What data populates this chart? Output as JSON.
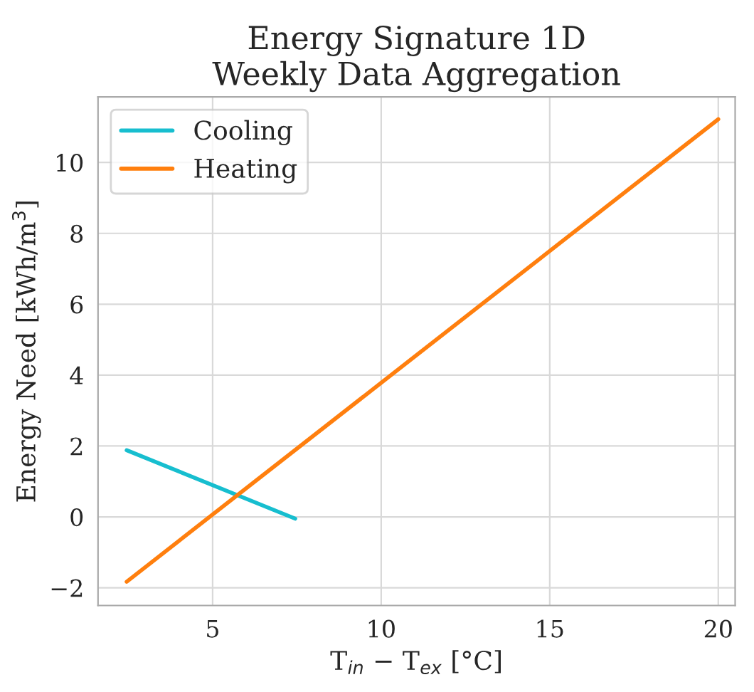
{
  "chart_data": {
    "type": "line",
    "title": "Energy Signature 1D\nWeekly Data Aggregation",
    "xlabel": "T$_{in}$ − T$_{ex}$ [°C]",
    "ylabel": "Energy Need [kWh/m$^{3}$]",
    "series": [
      {
        "name": "Cooling",
        "color": "#17becf",
        "x": [
          2.45,
          7.45
        ],
        "values": [
          1.88,
          -0.05
        ]
      },
      {
        "name": "Heating",
        "color": "#ff7f0e",
        "x": [
          2.45,
          20.0
        ],
        "values": [
          -1.83,
          11.22
        ]
      }
    ],
    "xlim": [
      1.6,
      20.5
    ],
    "ylim": [
      -2.5,
      11.85
    ],
    "xticks": [
      5,
      10,
      15,
      20
    ],
    "yticks": [
      -2,
      0,
      2,
      4,
      6,
      8,
      10
    ],
    "grid": true,
    "legend": "top left"
  }
}
